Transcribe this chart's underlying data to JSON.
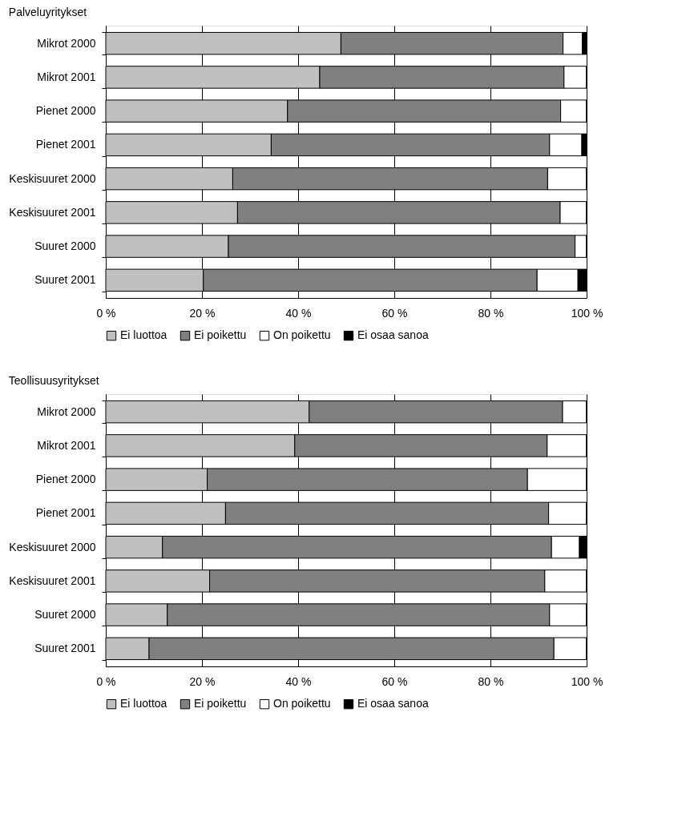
{
  "chart_data": [
    {
      "type": "bar",
      "orientation": "horizontal",
      "stacked": true,
      "title": "Palveluyritykset",
      "categories": [
        "Mikrot 2000",
        "Mikrot 2001",
        "Pienet 2000",
        "Pienet 2001",
        "Keskisuuret 2000",
        "Keskisuuret 2001",
        "Suuret 2000",
        "Suuret 2001"
      ],
      "series": [
        {
          "name": "Ei luottoa",
          "color": "#c0c0c0",
          "values": [
            48.9,
            44.5,
            37.8,
            34.4,
            26.4,
            27.4,
            25.5,
            20.3
          ]
        },
        {
          "name": "Ei poikettu",
          "color": "#808080",
          "values": [
            46.2,
            50.8,
            56.8,
            57.9,
            65.5,
            67.1,
            72.1,
            69.4
          ]
        },
        {
          "name": "On poikettu",
          "color": "#ffffff",
          "values": [
            4.0,
            4.7,
            5.4,
            6.7,
            8.1,
            5.5,
            2.4,
            8.5
          ]
        },
        {
          "name": "Ei osaa sanoa",
          "color": "#000000",
          "values": [
            0.9,
            0,
            0,
            1.0,
            0,
            0,
            0,
            1.8
          ]
        }
      ],
      "xlim": [
        0,
        100
      ],
      "xticks": [
        {
          "value": 0,
          "label": "0 %"
        },
        {
          "value": 20,
          "label": "20 %"
        },
        {
          "value": 40,
          "label": "40 %"
        },
        {
          "value": 60,
          "label": "60 %"
        },
        {
          "value": 80,
          "label": "80 %"
        },
        {
          "value": 100,
          "label": "100 %"
        }
      ],
      "grid": "x",
      "legend": "bottom"
    },
    {
      "type": "bar",
      "orientation": "horizontal",
      "stacked": true,
      "title": "Teollisuusyritykset",
      "categories": [
        "Mikrot 2000",
        "Mikrot 2001",
        "Pienet 2000",
        "Pienet 2001",
        "Keskisuuret 2000",
        "Keskisuuret 2001",
        "Suuret 2000",
        "Suuret 2001"
      ],
      "series": [
        {
          "name": "Ei luottoa",
          "color": "#c0c0c0",
          "values": [
            42.3,
            39.3,
            21.1,
            24.9,
            11.8,
            21.6,
            12.8,
            9.0
          ]
        },
        {
          "name": "Ei poikettu",
          "color": "#808080",
          "values": [
            52.7,
            52.5,
            66.6,
            67.2,
            80.9,
            69.7,
            79.5,
            84.2
          ]
        },
        {
          "name": "On poikettu",
          "color": "#ffffff",
          "values": [
            5.0,
            8.2,
            12.3,
            7.9,
            5.8,
            8.7,
            7.7,
            6.8
          ]
        },
        {
          "name": "Ei osaa sanoa",
          "color": "#000000",
          "values": [
            0,
            0,
            0,
            0,
            1.5,
            0,
            0,
            0
          ]
        }
      ],
      "xlim": [
        0,
        100
      ],
      "xticks": [
        {
          "value": 0,
          "label": "0 %"
        },
        {
          "value": 20,
          "label": "20 %"
        },
        {
          "value": 40,
          "label": "40 %"
        },
        {
          "value": 60,
          "label": "60 %"
        },
        {
          "value": 80,
          "label": "80 %"
        },
        {
          "value": 100,
          "label": "100 %"
        }
      ],
      "grid": "x",
      "legend": "bottom"
    }
  ]
}
